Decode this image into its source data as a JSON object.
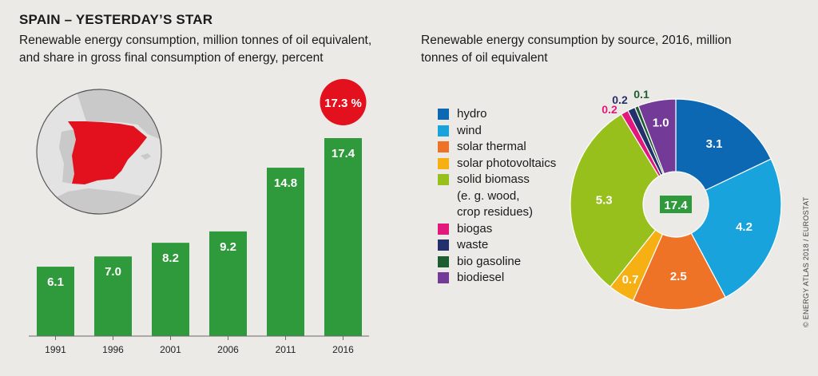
{
  "title": "SPAIN – YESTERDAY’S STAR",
  "credit": "© ENERGY ATLAS 2018 / EUROSTAT",
  "colors": {
    "bar": "#2f9a3c",
    "badge": "#e3101e",
    "map_country": "#e3101e",
    "map_land": "#c8c9c8",
    "map_sea": "#e3e3e3",
    "axis": "#6b6b6b"
  },
  "chart_data": [
    {
      "type": "bar",
      "subtitle": "Renewable energy consumption, million tonnes of oil equivalent, and share in gross final consumption of energy, percent",
      "categories": [
        "1991",
        "1996",
        "2001",
        "2006",
        "2011",
        "2016"
      ],
      "values": [
        6.1,
        7.0,
        8.2,
        9.2,
        14.8,
        17.4
      ],
      "value_labels": [
        "6.1",
        "7.0",
        "8.2",
        "9.2",
        "14.8",
        "17.4"
      ],
      "ylim": [
        0,
        17.4
      ],
      "annotation": "17.3 %",
      "grid": false
    },
    {
      "type": "pie",
      "subtitle": "Renewable energy consumption by source, 2016, million tonnes of oil equivalent",
      "center_label": "17.4",
      "slices": [
        {
          "name": "hydro",
          "value": 3.1,
          "label": "3.1",
          "color": "#0c68b3"
        },
        {
          "name": "wind",
          "value": 4.2,
          "label": "4.2",
          "color": "#18a3dd"
        },
        {
          "name": "solar thermal",
          "value": 2.5,
          "label": "2.5",
          "color": "#ee7326"
        },
        {
          "name": "solar photovoltaics",
          "value": 0.7,
          "label": "0.7",
          "color": "#f6b013"
        },
        {
          "name": "solid biomass (e. g. wood, crop residues)",
          "value": 5.3,
          "label": "5.3",
          "color": "#98c01d"
        },
        {
          "name": "biogas",
          "value": 0.2,
          "label": "0.2",
          "color": "#e3187c"
        },
        {
          "name": "waste",
          "value": 0.2,
          "label": "0.2",
          "color": "#23306b"
        },
        {
          "name": "bio gasoline",
          "value": 0.1,
          "label": "0.1",
          "color": "#1e5c32"
        },
        {
          "name": "biodiesel",
          "value": 1.0,
          "label": "1.0",
          "color": "#733b97"
        }
      ],
      "legend_lines": [
        [
          "hydro"
        ],
        [
          "wind"
        ],
        [
          "solar thermal"
        ],
        [
          "solar photovoltaics"
        ],
        [
          "solid biomass",
          "(e. g. wood,",
          "crop residues)"
        ],
        [
          "biogas"
        ],
        [
          "waste"
        ],
        [
          "bio gasoline"
        ],
        [
          "biodiesel"
        ]
      ],
      "legend_placement": "left"
    }
  ]
}
